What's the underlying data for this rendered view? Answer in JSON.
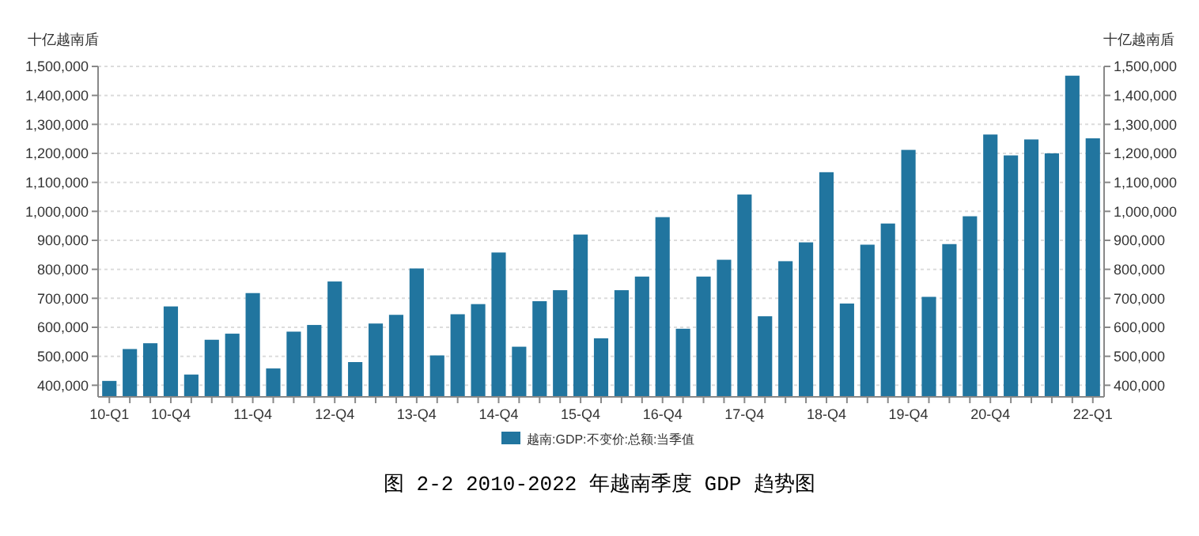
{
  "chart_data": {
    "type": "bar",
    "title": "图 2-2 2010-2022 年越南季度 GDP 趋势图",
    "ylabel": "十亿越南盾",
    "y2label": "十亿越南盾",
    "categories": [
      "10-Q1",
      null,
      null,
      "10-Q4",
      null,
      null,
      null,
      "11-Q4",
      null,
      null,
      null,
      "12-Q4",
      null,
      null,
      null,
      "13-Q4",
      null,
      null,
      null,
      "14-Q4",
      null,
      null,
      null,
      "15-Q4",
      null,
      null,
      null,
      "16-Q4",
      null,
      null,
      null,
      "17-Q4",
      null,
      null,
      null,
      "18-Q4",
      null,
      null,
      null,
      "19-Q4",
      null,
      null,
      null,
      "20-Q4",
      null,
      null,
      null,
      null,
      "22-Q1"
    ],
    "series": [
      {
        "name": "越南:GDP:不变价:总额:当季值",
        "color": "#21759f",
        "values": [
          415000,
          525000,
          545000,
          672000,
          437000,
          557000,
          578000,
          718000,
          458000,
          585000,
          608000,
          758000,
          480000,
          613000,
          643000,
          803000,
          503000,
          645000,
          680000,
          858000,
          533000,
          690000,
          728000,
          920000,
          562000,
          728000,
          775000,
          980000,
          595000,
          775000,
          833000,
          1058000,
          638000,
          828000,
          893000,
          1135000,
          682000,
          885000,
          958000,
          1212000,
          705000,
          887000,
          983000,
          1265000,
          1193000,
          1248000,
          1200000,
          1468000,
          1252000
        ]
      }
    ],
    "ylim": [
      360000,
      1500000
    ],
    "yticks": [
      {
        "value": 400000,
        "label": "400,000"
      },
      {
        "value": 500000,
        "label": "500,000"
      },
      {
        "value": 600000,
        "label": "600,000"
      },
      {
        "value": 700000,
        "label": "700,000"
      },
      {
        "value": 800000,
        "label": "800,000"
      },
      {
        "value": 900000,
        "label": "900,000"
      },
      {
        "value": 1000000,
        "label": "1,000,000"
      },
      {
        "value": 1100000,
        "label": "1,100,000"
      },
      {
        "value": 1200000,
        "label": "1,200,000"
      },
      {
        "value": 1300000,
        "label": "1,300,000"
      },
      {
        "value": 1400000,
        "label": "1,400,000"
      },
      {
        "value": 1500000,
        "label": "1,500,000"
      }
    ],
    "y2lim": [
      360000,
      1500000
    ],
    "y2ticks": [
      {
        "value": 400000,
        "label": "400,000"
      },
      {
        "value": 500000,
        "label": "500,000"
      },
      {
        "value": 600000,
        "label": "600,000"
      },
      {
        "value": 700000,
        "label": "700,000"
      },
      {
        "value": 800000,
        "label": "800,000"
      },
      {
        "value": 900000,
        "label": "900,000"
      },
      {
        "value": 1000000,
        "label": "1,000,000"
      },
      {
        "value": 1100000,
        "label": "1,100,000"
      },
      {
        "value": 1200000,
        "label": "1,200,000"
      },
      {
        "value": 1300000,
        "label": "1,300,000"
      },
      {
        "value": 1400000,
        "label": "1,400,000"
      },
      {
        "value": 1500000,
        "label": "1,500,000"
      }
    ],
    "grid": "y",
    "legend": "bottom"
  }
}
